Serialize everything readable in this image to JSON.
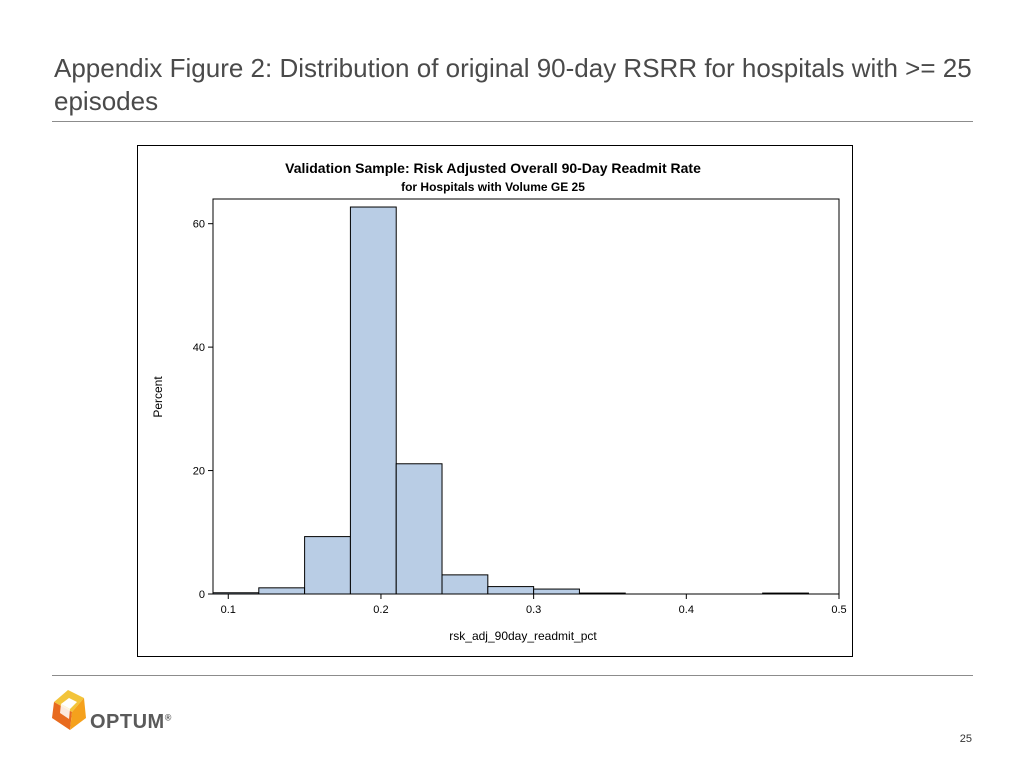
{
  "slide": {
    "title": "Appendix Figure 2: Distribution of original 90-day RSRR for hospitals with >= 25 episodes",
    "page_number": "25"
  },
  "logo": {
    "text": "OPTUM",
    "mark": "®",
    "icon": "optum-logo-icon",
    "colors": [
      "#f5a11c",
      "#e86b1f",
      "#f3c43a"
    ]
  },
  "colors": {
    "bar_fill": "#b9cde5",
    "bar_stroke": "#000000",
    "title_text": "#4a4a4a",
    "rule": "#8c8c8c"
  },
  "chart_data": {
    "type": "bar",
    "title": "Validation Sample: Risk Adjusted Overall 90-Day Readmit Rate",
    "subtitle": "for Hospitals with Volume GE 25",
    "xlabel": "rsk_adj_90day_readmit_pct",
    "ylabel": "Percent",
    "xlim": [
      0.09,
      0.5
    ],
    "ylim": [
      0,
      64
    ],
    "xticks": [
      0.1,
      0.2,
      0.3,
      0.4,
      0.5
    ],
    "xtick_labels": [
      "0.1",
      "0.2",
      "0.3",
      "0.4",
      "0.5"
    ],
    "yticks": [
      0,
      20,
      40,
      60
    ],
    "ytick_labels": [
      "0",
      "20",
      "40",
      "60"
    ],
    "bin_width": 0.03,
    "bins": [
      {
        "start": 0.09,
        "end": 0.12,
        "value": 0.2
      },
      {
        "start": 0.12,
        "end": 0.15,
        "value": 1.0
      },
      {
        "start": 0.15,
        "end": 0.18,
        "value": 9.3
      },
      {
        "start": 0.18,
        "end": 0.21,
        "value": 62.7
      },
      {
        "start": 0.21,
        "end": 0.24,
        "value": 21.1
      },
      {
        "start": 0.24,
        "end": 0.27,
        "value": 3.1
      },
      {
        "start": 0.27,
        "end": 0.3,
        "value": 1.2
      },
      {
        "start": 0.3,
        "end": 0.33,
        "value": 0.8
      },
      {
        "start": 0.33,
        "end": 0.36,
        "value": 0.15
      },
      {
        "start": 0.45,
        "end": 0.48,
        "value": 0.15
      }
    ],
    "grid": false,
    "legend": "none"
  }
}
